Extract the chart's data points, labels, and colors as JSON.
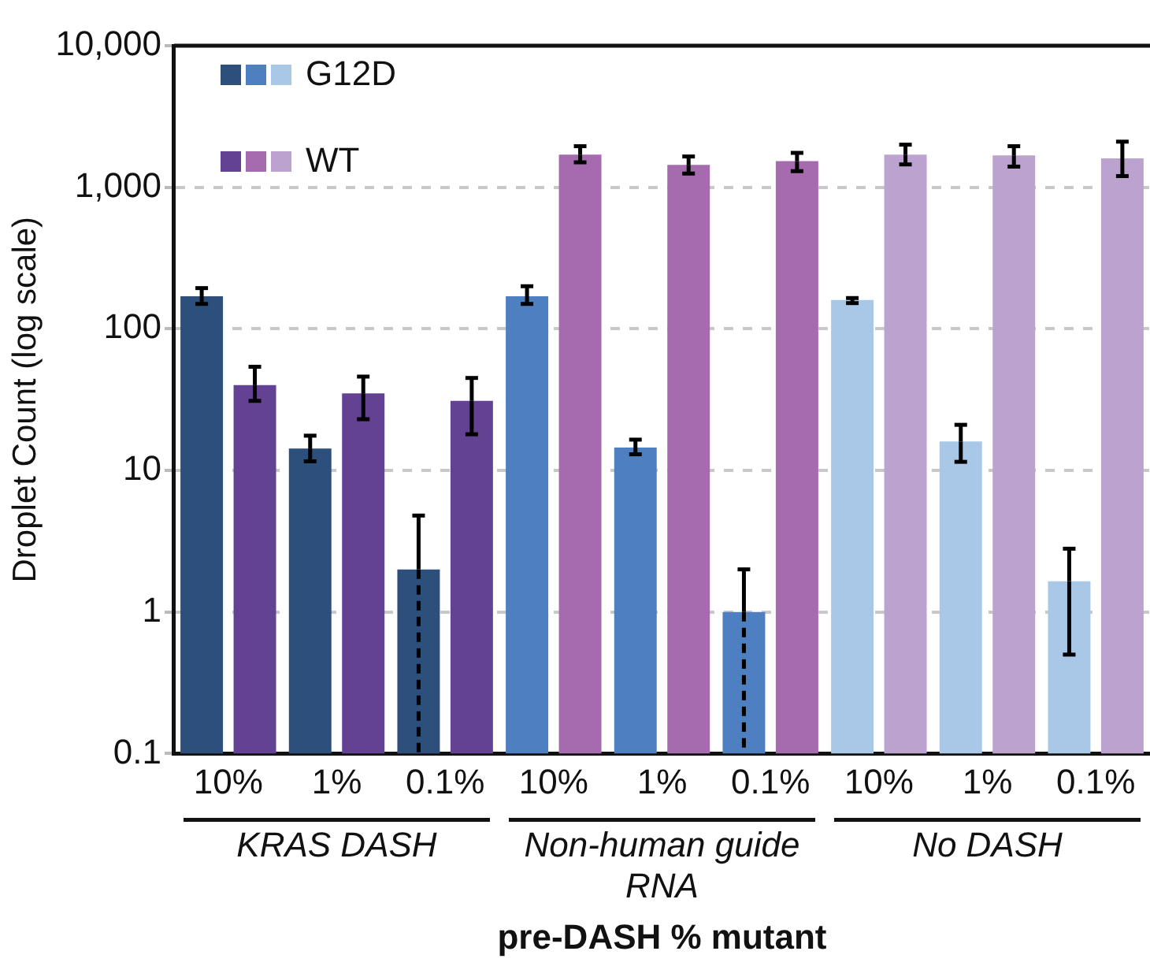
{
  "chart_data": {
    "type": "bar",
    "xlabel": "pre-DASH % mutant",
    "ylabel": "Droplet Count (log scale)",
    "categories": [
      "10%",
      "1%",
      "0.1%",
      "10%",
      "1%",
      "0.1%",
      "10%",
      "1%",
      "0.1%"
    ],
    "series": [
      {
        "name": "G12D",
        "colors": [
          "#2c4f7c",
          "#2c4f7c",
          "#2c4f7c",
          "#4d7fc1",
          "#4d7fc1",
          "#4d7fc1",
          "#a9c8e8",
          "#a9c8e8",
          "#a9c8e8"
        ],
        "values": [
          170,
          14.3,
          2,
          170,
          14.5,
          1,
          160,
          16,
          1.65
        ],
        "errors": [
          [
            150,
            194
          ],
          [
            11.6,
            17.6
          ],
          [
            0.1,
            4.8
          ],
          [
            150,
            200
          ],
          [
            13,
            16.5
          ],
          [
            0.1,
            2
          ],
          [
            152,
            165
          ],
          [
            11.5,
            21
          ],
          [
            0.5,
            2.8
          ]
        ]
      },
      {
        "name": "WT",
        "colors": [
          "#644293",
          "#644293",
          "#644293",
          "#a66aae",
          "#a66aae",
          "#a66aae",
          "#bca3cf",
          "#bca3cf",
          "#bca3cf"
        ],
        "values": [
          40,
          35,
          31,
          1700,
          1440,
          1530,
          1700,
          1680,
          1600
        ],
        "errors": [
          [
            31,
            54
          ],
          [
            23,
            46
          ],
          [
            18,
            45
          ],
          [
            1500,
            1950
          ],
          [
            1250,
            1650
          ],
          [
            1300,
            1750
          ],
          [
            1450,
            2000
          ],
          [
            1400,
            1950
          ],
          [
            1200,
            2100
          ]
        ]
      }
    ],
    "annotations": [
      "KRAS DASH",
      "Non-human guide RNA",
      "No DASH"
    ],
    "log": "y",
    "ylim": [
      0.1,
      10000
    ],
    "yticks": [
      0.1,
      1,
      10,
      100,
      {
        "value": 1000,
        "label": "1,000"
      },
      {
        "value": 10000,
        "label": "10,000"
      }
    ],
    "grid": "y",
    "legend": "top left"
  }
}
